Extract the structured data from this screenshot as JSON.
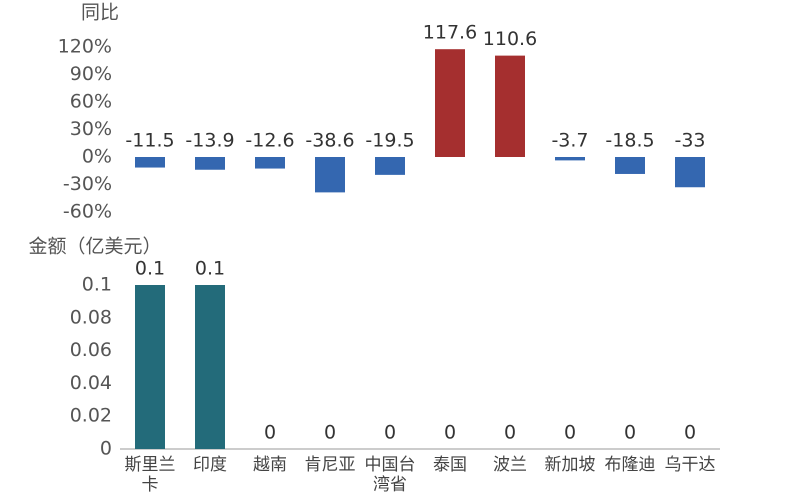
{
  "chart_data": [
    {
      "type": "bar",
      "y_label": "同比",
      "values": [
        -11.5,
        -13.9,
        -12.6,
        -38.6,
        -19.5,
        117.6,
        110.6,
        -3.7,
        -18.5,
        -33
      ],
      "positive_color": "#a52f2f",
      "negative_color": "#3467b0",
      "ylim": [
        -60,
        120
      ],
      "yticks": [
        {
          "value": -60,
          "label": "-60%"
        },
        {
          "value": -30,
          "label": "-30%"
        },
        {
          "value": 0,
          "label": "0%"
        },
        {
          "value": 30,
          "label": "30%"
        },
        {
          "value": 60,
          "label": "60%"
        },
        {
          "value": 90,
          "label": "90%"
        },
        {
          "value": 120,
          "label": "120%"
        }
      ],
      "grid": false
    },
    {
      "type": "bar",
      "y_label": "金额（亿美元）",
      "categories": [
        "斯里兰卡",
        "印度",
        "越南",
        "肯尼亚",
        "中国台湾省",
        "泰国",
        "波兰",
        "新加坡",
        "布隆迪",
        "乌干达"
      ],
      "values": [
        0.1,
        0.1,
        0,
        0,
        0,
        0,
        0,
        0,
        0,
        0
      ],
      "color": "#236b7a",
      "ylim": [
        0,
        0.1
      ],
      "yticks": [
        0,
        0.02,
        0.04,
        0.06,
        0.08,
        0.1
      ],
      "grid": false
    }
  ]
}
